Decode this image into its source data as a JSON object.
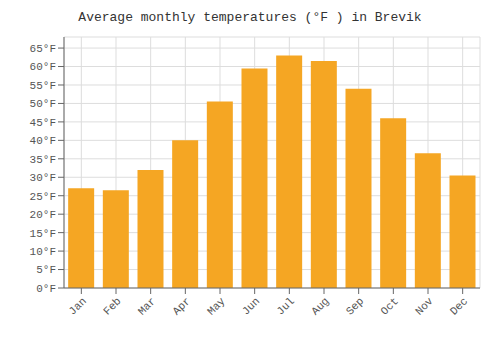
{
  "chart_data": {
    "type": "bar",
    "title": "Average monthly temperatures (°F ) in Brevik",
    "categories": [
      "Jan",
      "Feb",
      "Mar",
      "Apr",
      "May",
      "Jun",
      "Jul",
      "Aug",
      "Sep",
      "Oct",
      "Nov",
      "Dec"
    ],
    "values": [
      27,
      26.5,
      32,
      40,
      50.5,
      59.5,
      63,
      61.5,
      54,
      46,
      36.5,
      30.5
    ],
    "color": "#F5A623",
    "ylim": [
      0,
      68
    ],
    "yticks": [
      {
        "value": 0,
        "label": "0°F"
      },
      {
        "value": 5,
        "label": "5°F"
      },
      {
        "value": 10,
        "label": "10°F"
      },
      {
        "value": 15,
        "label": "15°F"
      },
      {
        "value": 20,
        "label": "20°F"
      },
      {
        "value": 25,
        "label": "25°F"
      },
      {
        "value": 30,
        "label": "30°F"
      },
      {
        "value": 35,
        "label": "35°F"
      },
      {
        "value": 40,
        "label": "40°F"
      },
      {
        "value": 45,
        "label": "45°F"
      },
      {
        "value": 50,
        "label": "50°F"
      },
      {
        "value": 55,
        "label": "55°F"
      },
      {
        "value": 60,
        "label": "60°F"
      },
      {
        "value": 65,
        "label": "65°F"
      }
    ],
    "grid": true
  }
}
